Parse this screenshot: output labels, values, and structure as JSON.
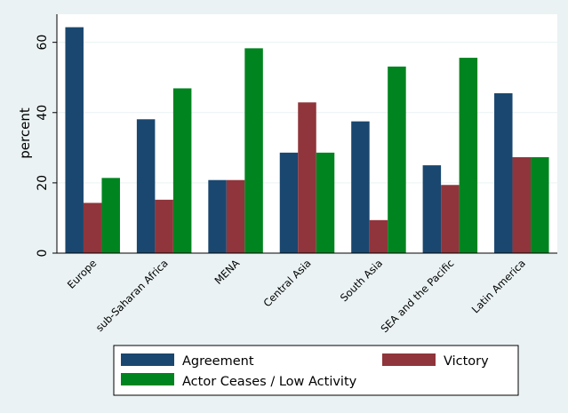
{
  "chart_data": {
    "type": "bar",
    "title": "",
    "xlabel": "",
    "ylabel": "percent",
    "ylim": [
      0,
      68
    ],
    "yticks": [
      0,
      20,
      40,
      60
    ],
    "grid": true,
    "legend_position": "bottom",
    "categories": [
      "Europe",
      "sub-Saharan Africa",
      "MENA",
      "Central Asia",
      "South Asia",
      "SEA and the Pacific",
      "Latin America"
    ],
    "series": [
      {
        "name": "Agreement",
        "color": "#1a476f",
        "values": [
          64.3,
          38.1,
          20.8,
          28.6,
          37.5,
          25.0,
          45.5
        ]
      },
      {
        "name": "Victory",
        "color": "#90353b",
        "values": [
          14.3,
          15.2,
          20.8,
          42.9,
          9.4,
          19.4,
          27.3
        ]
      },
      {
        "name": "Actor Ceases / Low Activity",
        "color": "#00841f",
        "values": [
          21.4,
          46.9,
          58.3,
          28.6,
          53.1,
          55.6,
          27.3
        ]
      }
    ]
  }
}
